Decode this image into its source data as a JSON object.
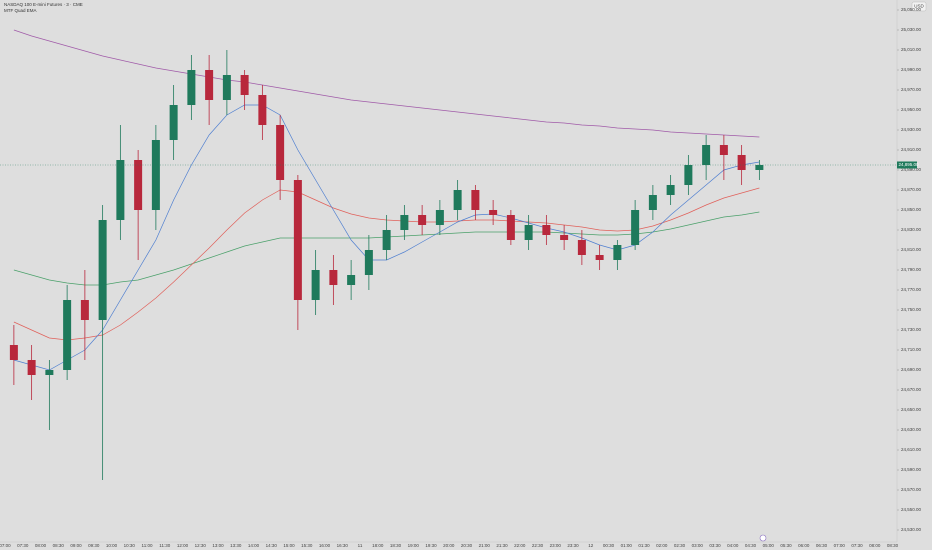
{
  "chart_data": {
    "type": "candlestick",
    "title": "NASDAQ 100 E-mini Futures · 3 · CME",
    "subtitle": "MTF Quad EMA",
    "currency_button": "USD",
    "up_color": "#1f7a5c",
    "down_color": "#b8283c",
    "time_labels": [
      "07:00",
      "07:30",
      "08:00",
      "08:30",
      "09:00",
      "09:30",
      "10:00",
      "10:30",
      "11:00",
      "11:30",
      "12:00",
      "12:30",
      "13:00",
      "13:30",
      "14:00",
      "14:30",
      "15:00",
      "15:30",
      "16:00",
      "16:30",
      "11",
      "18:00",
      "18:30",
      "19:00",
      "19:30",
      "20:00",
      "20:30",
      "21:00",
      "21:30",
      "22:00",
      "22:30",
      "23:00",
      "23:30",
      "12",
      "00:30",
      "01:00",
      "01:30",
      "02:00",
      "02:30",
      "03:00",
      "03:30",
      "04:00",
      "04:30",
      "05:00",
      "05:30",
      "06:00",
      "06:30",
      "07:00",
      "07:30",
      "08:00",
      "08:30"
    ],
    "open": [
      24715,
      24700,
      24685,
      24690,
      24760,
      24740,
      24840,
      24900,
      24850,
      24920,
      24955,
      24990,
      24960,
      24985,
      24965,
      24935,
      24880,
      24760,
      24790,
      24775,
      24785,
      24810,
      24830,
      24845,
      24835,
      24850,
      24870,
      24850,
      24845,
      24820,
      24835,
      24825,
      24820,
      24805,
      24800,
      24815,
      24850,
      24865,
      24875,
      24895,
      24915,
      24905,
      24890
    ],
    "high": [
      24735,
      24715,
      24700,
      24775,
      24790,
      24855,
      24935,
      24910,
      24935,
      24975,
      25005,
      25005,
      25010,
      24990,
      24975,
      24945,
      24885,
      24810,
      24805,
      24800,
      24825,
      24845,
      24855,
      24855,
      24860,
      24880,
      24875,
      24860,
      24850,
      24845,
      24845,
      24835,
      24830,
      24815,
      24820,
      24860,
      24875,
      24885,
      24905,
      24925,
      24925,
      24915,
      24900
    ],
    "low": [
      24675,
      24660,
      24630,
      24680,
      24700,
      24580,
      24820,
      24800,
      24830,
      24900,
      24940,
      24935,
      24945,
      24950,
      24920,
      24860,
      24730,
      24745,
      24755,
      24760,
      24770,
      24800,
      24820,
      24825,
      24825,
      24840,
      24840,
      24835,
      24815,
      24810,
      24815,
      24810,
      24795,
      24790,
      24790,
      24810,
      24840,
      24855,
      24865,
      24880,
      24880,
      24875,
      24880
    ],
    "close": [
      24700,
      24685,
      24690,
      24760,
      24740,
      24840,
      24900,
      24850,
      24920,
      24955,
      24990,
      24960,
      24985,
      24965,
      24935,
      24880,
      24760,
      24790,
      24775,
      24785,
      24810,
      24830,
      24845,
      24835,
      24850,
      24870,
      24850,
      24845,
      24820,
      24835,
      24825,
      24820,
      24805,
      24800,
      24815,
      24850,
      24865,
      24875,
      24895,
      24915,
      24905,
      24890,
      24895
    ],
    "series": [
      {
        "color": "#a05aa8",
        "values": [
          25030,
          25024,
          25019,
          25014,
          25009,
          25004,
          25000,
          24996,
          24992,
          24989,
          24986,
          24983,
          24980,
          24978,
          24975,
          24972,
          24969,
          24966,
          24963,
          24960,
          24958,
          24956,
          24954,
          24952,
          24950,
          24948,
          24946,
          24944,
          24942,
          24940,
          24938,
          24937,
          24935,
          24934,
          24932,
          24931,
          24930,
          24928,
          24927,
          24926,
          24925,
          24924,
          24923
        ]
      },
      {
        "color": "#4aa06a",
        "values": [
          24790,
          24785,
          24780,
          24777,
          24775,
          24775,
          24778,
          24780,
          24785,
          24790,
          24796,
          24802,
          24808,
          24814,
          24818,
          24822,
          24822,
          24822,
          24822,
          24822,
          24822,
          24823,
          24824,
          24825,
          24826,
          24827,
          24828,
          24828,
          24828,
          24828,
          24828,
          24827,
          24826,
          24825,
          24825,
          24826,
          24828,
          24831,
          24835,
          24839,
          24843,
          24845,
          24848
        ]
      },
      {
        "color": "#e0605a",
        "values": [
          24738,
          24730,
          24722,
          24720,
          24722,
          24725,
          24735,
          24748,
          24762,
          24778,
          24795,
          24812,
          24830,
          24847,
          24860,
          24870,
          24868,
          24860,
          24852,
          24846,
          24842,
          24840,
          24839,
          24838,
          24838,
          24839,
          24840,
          24840,
          24839,
          24838,
          24837,
          24835,
          24833,
          24830,
          24829,
          24830,
          24834,
          24840,
          24847,
          24855,
          24862,
          24867,
          24872
        ]
      },
      {
        "color": "#4f7fd0",
        "values": [
          24700,
          24695,
          24690,
          24700,
          24710,
          24730,
          24760,
          24790,
          24820,
          24860,
          24895,
          24925,
          24945,
          24955,
          24955,
          24945,
          24910,
          24880,
          24850,
          24820,
          24800,
          24800,
          24808,
          24818,
          24828,
          24838,
          24845,
          24846,
          24842,
          24837,
          24832,
          24828,
          24822,
          24815,
          24810,
          24815,
          24828,
          24845,
          24860,
          24875,
          24890,
          24895,
          24898
        ]
      }
    ],
    "last_price": {
      "value": 24895,
      "label": "24,895.00"
    },
    "ylim": [
      24520,
      25060
    ],
    "yticks": [
      {
        "value": 24530,
        "label": "24,530.00"
      },
      {
        "value": 24550,
        "label": "24,550.00"
      },
      {
        "value": 24570,
        "label": "24,570.00"
      },
      {
        "value": 24590,
        "label": "24,590.00"
      },
      {
        "value": 24610,
        "label": "24,610.00"
      },
      {
        "value": 24630,
        "label": "24,630.00"
      },
      {
        "value": 24650,
        "label": "24,650.00"
      },
      {
        "value": 24670,
        "label": "24,670.00"
      },
      {
        "value": 24690,
        "label": "24,690.00"
      },
      {
        "value": 24710,
        "label": "24,710.00"
      },
      {
        "value": 24730,
        "label": "24,730.00"
      },
      {
        "value": 24750,
        "label": "24,750.00"
      },
      {
        "value": 24770,
        "label": "24,770.00"
      },
      {
        "value": 24790,
        "label": "24,790.00"
      },
      {
        "value": 24810,
        "label": "24,810.00"
      },
      {
        "value": 24830,
        "label": "24,830.00"
      },
      {
        "value": 24850,
        "label": "24,850.00"
      },
      {
        "value": 24870,
        "label": "24,870.00"
      },
      {
        "value": 24890,
        "label": "24,890.00"
      },
      {
        "value": 24910,
        "label": "24,910.00"
      },
      {
        "value": 24930,
        "label": "24,930.00"
      },
      {
        "value": 24950,
        "label": "24,950.00"
      },
      {
        "value": 24970,
        "label": "24,970.00"
      },
      {
        "value": 24990,
        "label": "24,990.00"
      },
      {
        "value": 25010,
        "label": "25,010.00"
      },
      {
        "value": 25030,
        "label": "25,030.00"
      },
      {
        "value": 25050,
        "label": "25,050.00"
      }
    ]
  }
}
